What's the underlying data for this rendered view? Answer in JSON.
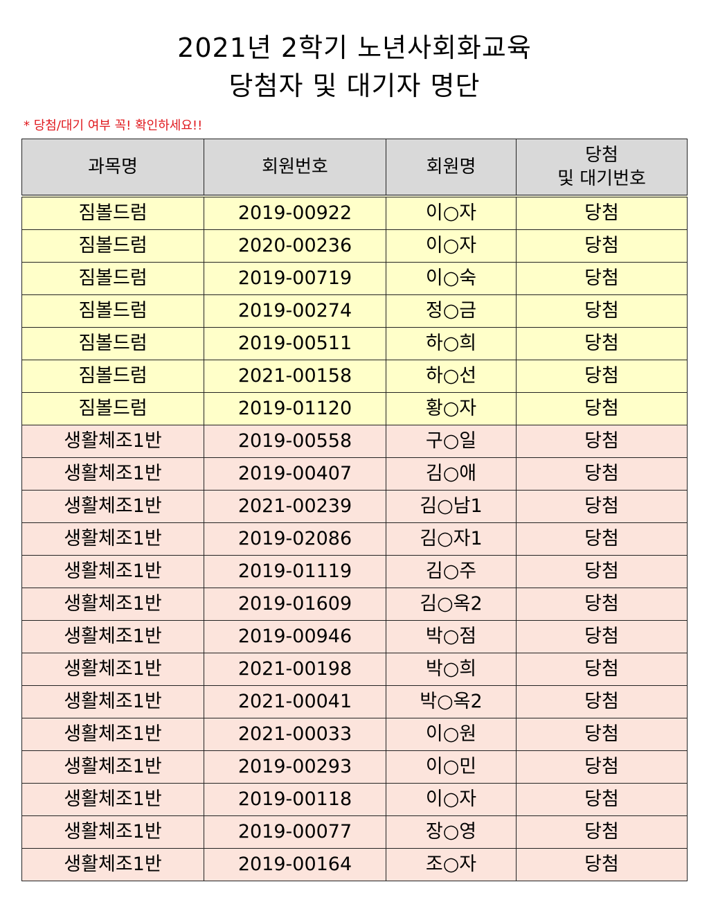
{
  "title": {
    "line1": "2021년 2학기 노년사회화교육",
    "line2": "당첨자 및 대기자 명단"
  },
  "notice": "* 당첨/대기 여부 꼭! 확인하세요!!",
  "colors": {
    "notice": "#e0191e",
    "header_bg": "#d9d9d9",
    "group1_bg": "#ffffc9",
    "group2_bg": "#fce4dc"
  },
  "table": {
    "headers": {
      "course": "과목명",
      "member_no": "회원번호",
      "member_name": "회원명",
      "status_line1": "당첨",
      "status_line2": "및 대기번호"
    },
    "rows": [
      {
        "course": "짐볼드럼",
        "member_no": "2019-00922",
        "name": "이○자",
        "status": "당첨"
      },
      {
        "course": "짐볼드럼",
        "member_no": "2020-00236",
        "name": "이○자",
        "status": "당첨"
      },
      {
        "course": "짐볼드럼",
        "member_no": "2019-00719",
        "name": "이○숙",
        "status": "당첨"
      },
      {
        "course": "짐볼드럼",
        "member_no": "2019-00274",
        "name": "정○금",
        "status": "당첨"
      },
      {
        "course": "짐볼드럼",
        "member_no": "2019-00511",
        "name": "하○희",
        "status": "당첨"
      },
      {
        "course": "짐볼드럼",
        "member_no": "2021-00158",
        "name": "하○선",
        "status": "당첨"
      },
      {
        "course": "짐볼드럼",
        "member_no": "2019-01120",
        "name": "황○자",
        "status": "당첨"
      },
      {
        "course": "생활체조1반",
        "member_no": "2019-00558",
        "name": "구○일",
        "status": "당첨"
      },
      {
        "course": "생활체조1반",
        "member_no": "2019-00407",
        "name": "김○애",
        "status": "당첨"
      },
      {
        "course": "생활체조1반",
        "member_no": "2021-00239",
        "name": "김○남1",
        "status": "당첨"
      },
      {
        "course": "생활체조1반",
        "member_no": "2019-02086",
        "name": "김○자1",
        "status": "당첨"
      },
      {
        "course": "생활체조1반",
        "member_no": "2019-01119",
        "name": "김○주",
        "status": "당첨"
      },
      {
        "course": "생활체조1반",
        "member_no": "2019-01609",
        "name": "김○옥2",
        "status": "당첨"
      },
      {
        "course": "생활체조1반",
        "member_no": "2019-00946",
        "name": "박○점",
        "status": "당첨"
      },
      {
        "course": "생활체조1반",
        "member_no": "2021-00198",
        "name": "박○희",
        "status": "당첨"
      },
      {
        "course": "생활체조1반",
        "member_no": "2021-00041",
        "name": "박○옥2",
        "status": "당첨"
      },
      {
        "course": "생활체조1반",
        "member_no": "2021-00033",
        "name": "이○원",
        "status": "당첨"
      },
      {
        "course": "생활체조1반",
        "member_no": "2019-00293",
        "name": "이○민",
        "status": "당첨"
      },
      {
        "course": "생활체조1반",
        "member_no": "2019-00118",
        "name": "이○자",
        "status": "당첨"
      },
      {
        "course": "생활체조1반",
        "member_no": "2019-00077",
        "name": "장○영",
        "status": "당첨"
      },
      {
        "course": "생활체조1반",
        "member_no": "2019-00164",
        "name": "조○자",
        "status": "당첨"
      }
    ]
  }
}
